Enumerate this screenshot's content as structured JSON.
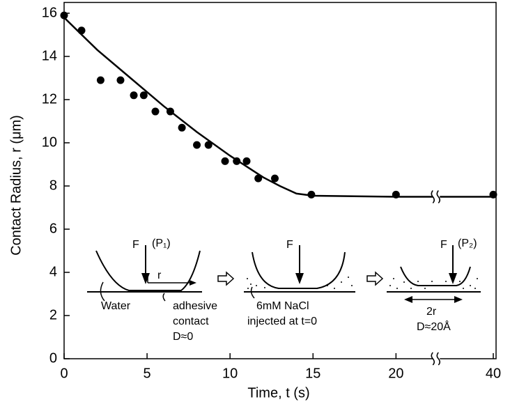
{
  "chart_data": {
    "type": "scatter",
    "x_label": "Time, t (s)",
    "y_label": "Contact Radius, r (μm)",
    "xlim": [
      0,
      40
    ],
    "x_break": [
      22,
      37
    ],
    "ylim": [
      0,
      16.5
    ],
    "xticks": [
      0,
      5,
      10,
      15,
      20,
      40
    ],
    "yticks": [
      0,
      2,
      4,
      6,
      8,
      10,
      12,
      14,
      16
    ],
    "points": {
      "color": "#000000",
      "x": [
        0,
        1.05,
        2.2,
        3.4,
        4.2,
        4.8,
        5.5,
        6.4,
        7.1,
        8.0,
        8.7,
        9.7,
        10.4,
        11.0,
        11.7,
        12.7,
        14.9,
        20,
        40
      ],
      "y": [
        15.9,
        15.2,
        12.9,
        12.9,
        12.2,
        12.2,
        11.45,
        11.45,
        10.7,
        9.9,
        9.9,
        9.15,
        9.15,
        9.15,
        8.35,
        8.35,
        7.6,
        7.6,
        7.6
      ]
    },
    "fit": {
      "color": "#000000",
      "x": [
        0,
        2,
        4,
        6,
        8,
        10,
        12,
        13,
        14,
        15,
        20,
        22,
        37,
        40
      ],
      "y": [
        15.8,
        14.3,
        13.0,
        11.7,
        10.5,
        9.4,
        8.4,
        8.0,
        7.65,
        7.55,
        7.5,
        7.5,
        7.5,
        7.5
      ]
    },
    "annotations": [
      "F",
      "(P₁)",
      "r",
      "Water",
      "adhesive",
      "contact",
      "D≈0",
      "F",
      "6mM NaCl",
      "injected at t=0",
      "F",
      "(P₂)",
      "2r",
      "D≈20Å"
    ]
  }
}
